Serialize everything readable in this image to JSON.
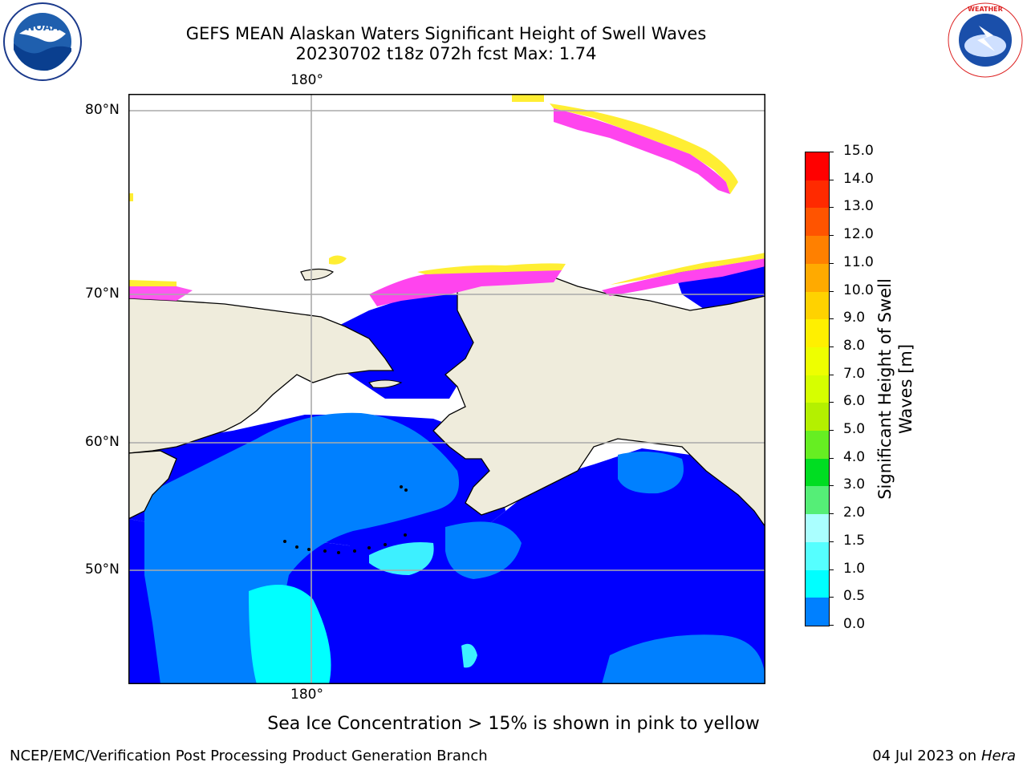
{
  "title_line1": "GEFS MEAN Alaskan Waters Significant Height of Swell Waves",
  "title_line2": "20230702 t18z 072h fcst   Max: 1.74",
  "logos": {
    "left": "NOAA",
    "right": "NATIONAL WEATHER SERVICE"
  },
  "map": {
    "lon_label_top": "180°",
    "lon_label_bottom": "180°",
    "lat_labels": [
      "80°N",
      "70°N",
      "60°N",
      "50°N"
    ],
    "colors": {
      "land": "#efecdc",
      "ice_pink": "#ff44ee",
      "ice_yellow": "#ffee33",
      "sea_0": "#0000ff",
      "sea_05": "#0080ff",
      "sea_15": "#00ffff",
      "sea_1": "#3df0ff"
    }
  },
  "colorbar": {
    "title_line1": "Significant Height of Swell",
    "title_line2": "Waves [m]",
    "ticks": [
      "15.0",
      "14.0",
      "13.0",
      "12.0",
      "11.0",
      "10.0",
      "9.0",
      "8.0",
      "7.0",
      "6.0",
      "5.0",
      "4.0",
      "3.0",
      "2.0",
      "1.5",
      "1.0",
      "0.5",
      "0.0"
    ],
    "colors": [
      "#ff0000",
      "#ff2a00",
      "#ff5400",
      "#ff8000",
      "#ffaa00",
      "#ffd200",
      "#fff000",
      "#eeff00",
      "#d6ff00",
      "#b4f000",
      "#66ee22",
      "#00dd22",
      "#55ee77",
      "#aaffff",
      "#55ffff",
      "#00ffff",
      "#0080ff",
      "#0000ff"
    ]
  },
  "note": "Sea Ice Concentration > 15% is shown in pink to yellow",
  "footer_left": "NCEP/EMC/Verification Post Processing Product Generation Branch",
  "footer_right_date": "04 Jul 2023 on ",
  "footer_right_host": "Hera"
}
